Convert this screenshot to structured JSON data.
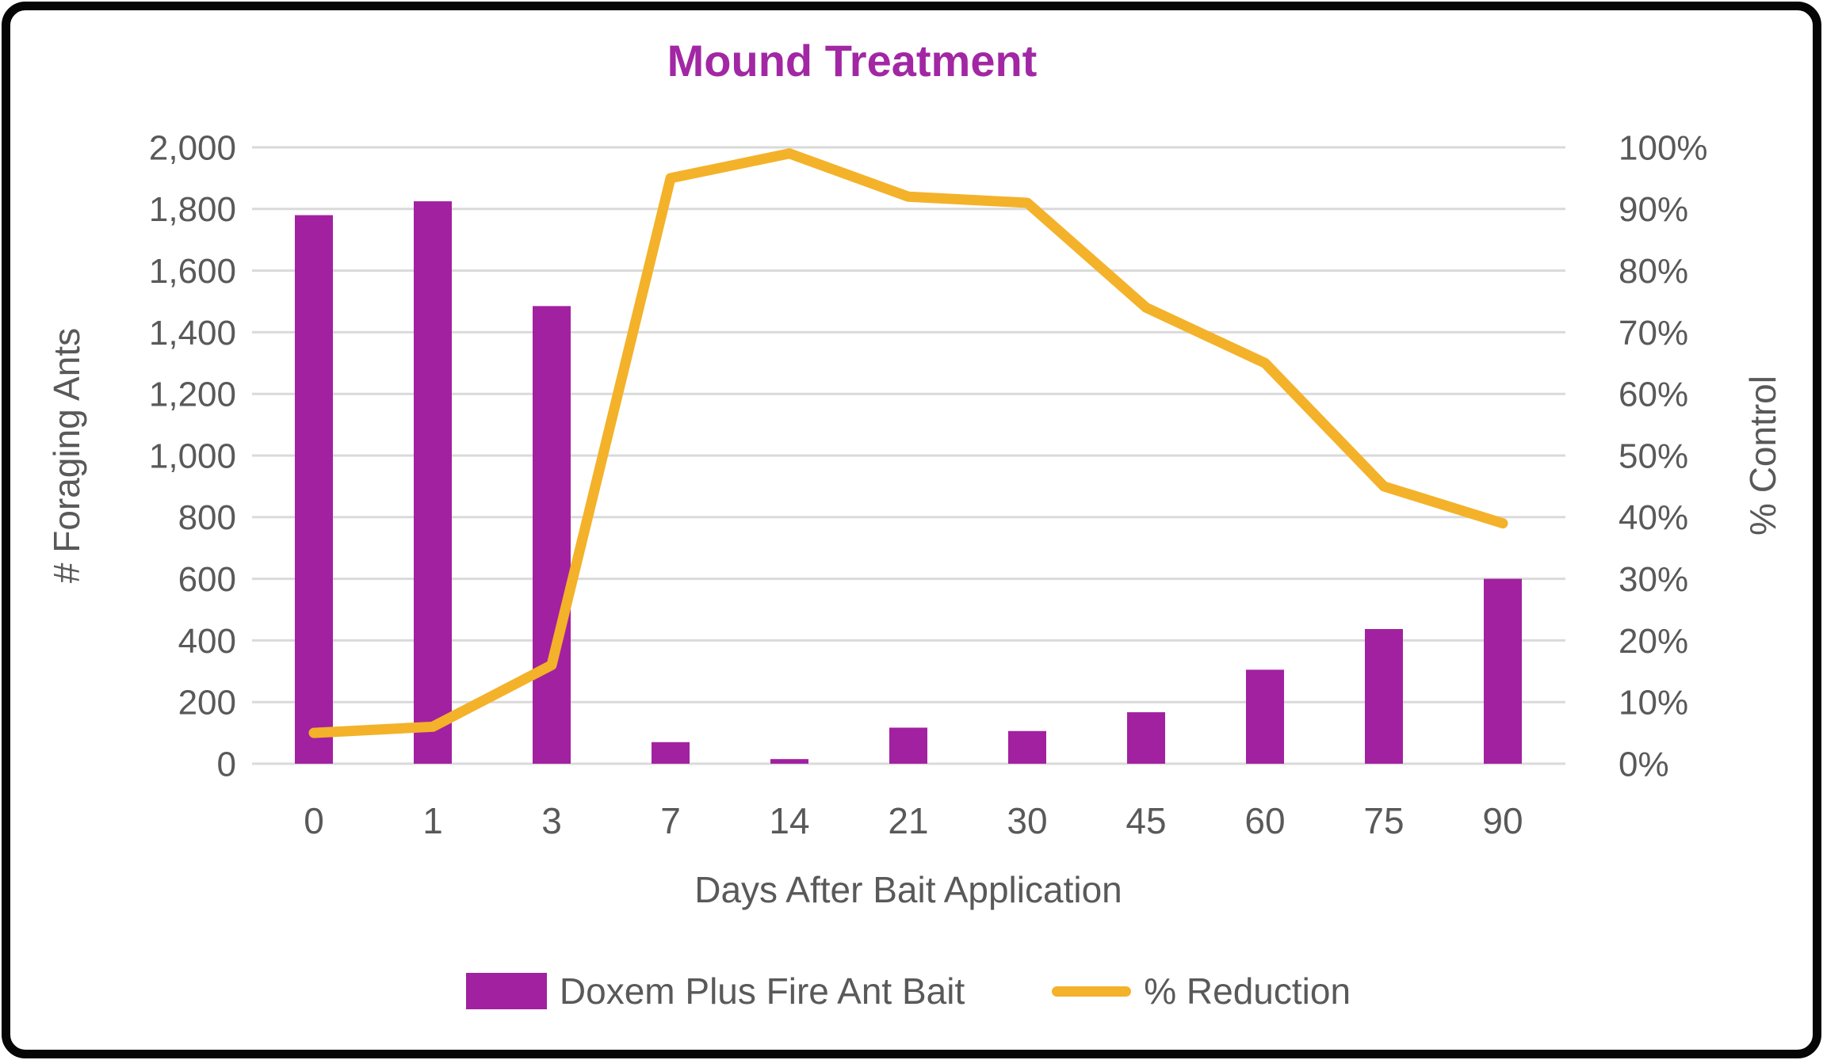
{
  "title": "Mound Treatment",
  "chart_data": {
    "type": "bar",
    "combo": "bar+line, dual axis",
    "title": "Mound Treatment",
    "categories": [
      "0",
      "1",
      "3",
      "7",
      "14",
      "21",
      "30",
      "45",
      "60",
      "75",
      "90"
    ],
    "series": [
      {
        "name": "Doxem Plus Fire Ant Bait",
        "type": "bar",
        "axis": "left",
        "color": "#A221A0",
        "values": [
          1780,
          1825,
          1485,
          70,
          15,
          117,
          106,
          167,
          305,
          437,
          600
        ]
      },
      {
        "name": "% Reduction",
        "type": "line",
        "axis": "right",
        "color": "#F3B229",
        "values": [
          5,
          6,
          16,
          95,
          99,
          92,
          91,
          74,
          65,
          45,
          39
        ]
      }
    ],
    "xlabel": "Days After Bait Application",
    "ylabel_left": "# Foraging Ants",
    "ylabel_right": "% Control",
    "y_left": {
      "min": 0,
      "max": 2000,
      "step": 200,
      "tick_labels": [
        "0",
        "200",
        "400",
        "600",
        "800",
        "1,000",
        "1,200",
        "1,400",
        "1,600",
        "1,800",
        "2,000"
      ]
    },
    "y_right": {
      "min": 0,
      "max": 100,
      "step": 10,
      "tick_labels": [
        "0%",
        "10%",
        "20%",
        "30%",
        "40%",
        "50%",
        "60%",
        "70%",
        "80%",
        "90%",
        "100%"
      ]
    },
    "grid": true,
    "legend_position": "bottom",
    "colors": {
      "title": "#A227A4",
      "axis_text": "#595959",
      "gridline": "#DADADA",
      "bar": "#A221A0",
      "line": "#F3B229",
      "frame_border": "#060606"
    }
  },
  "legend": {
    "items": [
      {
        "label": "Doxem Plus Fire Ant Bait",
        "swatch": "bar"
      },
      {
        "label": "% Reduction",
        "swatch": "line"
      }
    ]
  }
}
